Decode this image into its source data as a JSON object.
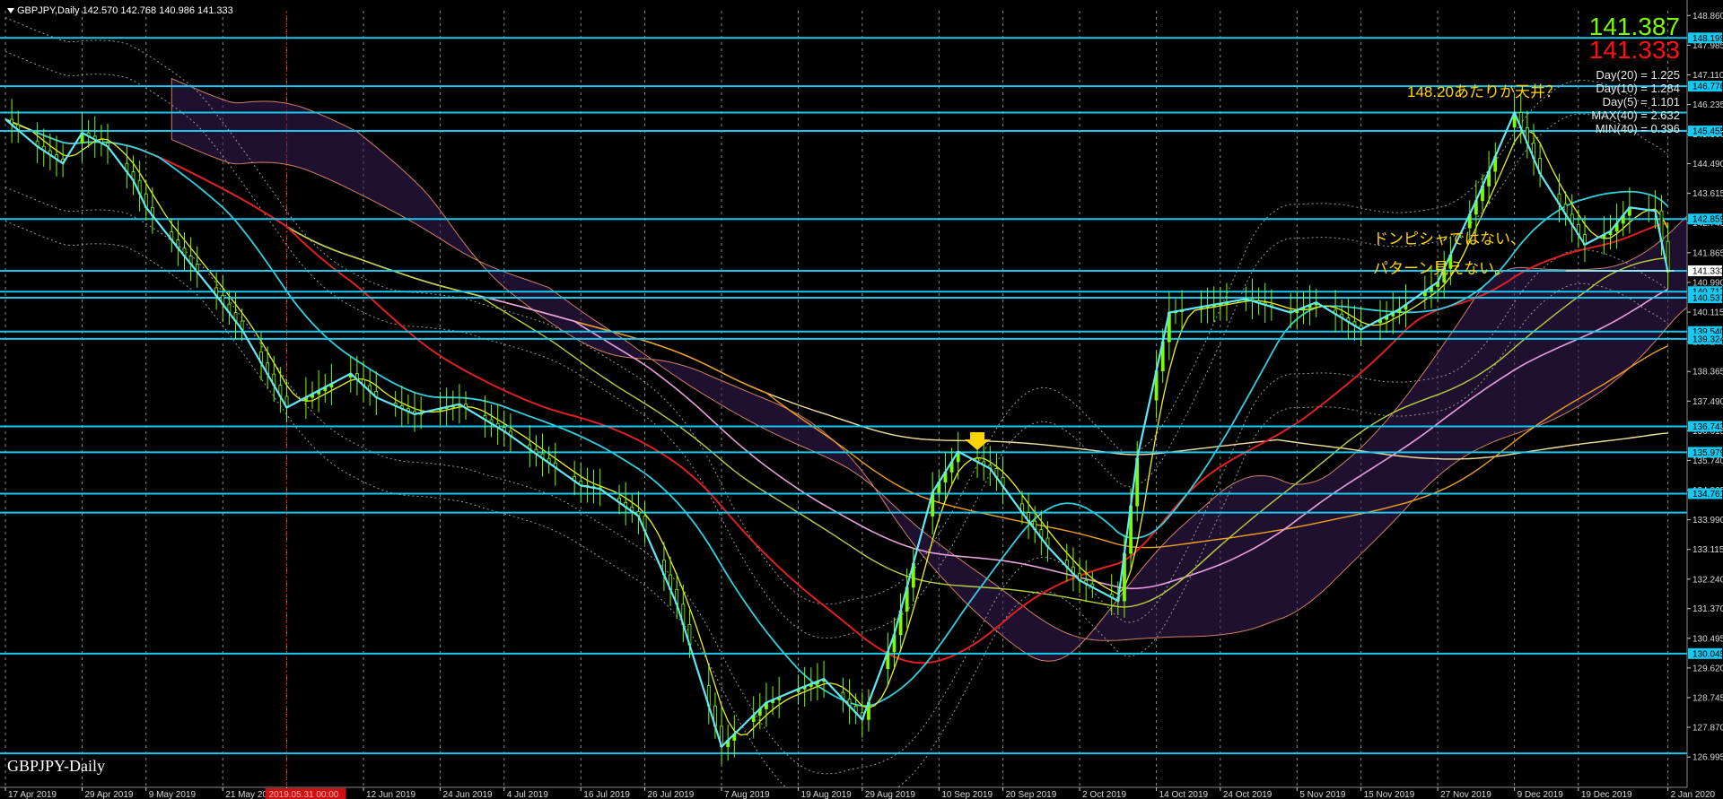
{
  "header": {
    "symbol": "GBPJPY,Daily",
    "ohlc": "142.570 142.768 140.986 141.333"
  },
  "quotes": {
    "bid": "141.387",
    "ask": "141.333"
  },
  "stats": [
    "Day(20) = 1.225",
    "Day(10) = 1.284",
    "Day(5) = 1.101",
    "MAX(40) = 2.632",
    "MIN(40) = 0.396"
  ],
  "annotations": {
    "top_note": "148.20あたりか天井？",
    "note_line1": "ドンピシャではない、",
    "note_line2": "パターン見えない。"
  },
  "symbol_label": "GBPJPY-Daily",
  "colors": {
    "background": "#000000",
    "level_line": "#19c8f0",
    "bull_candle": "#7cfc00",
    "bid": "#7cfc00",
    "ask": "#ff1010",
    "annotation": "#ffd400",
    "arrow": "#ffd400",
    "vline_marker": "#d01010"
  },
  "chart_data": {
    "type": "line",
    "title": "GBPJPY,Daily",
    "ylim": [
      126.1,
      149.0
    ],
    "xlim": [
      "2019-04-17",
      "2020-01-05"
    ],
    "price_ticks": [
      "148.860",
      "147.985",
      "147.110",
      "146.235",
      "145.360",
      "144.490",
      "143.615",
      "142.740",
      "141.865",
      "140.990",
      "140.115",
      "139.240",
      "138.365",
      "137.490",
      "136.615",
      "135.740",
      "134.865",
      "133.990",
      "133.115",
      "132.240",
      "131.370",
      "130.495",
      "129.620",
      "128.745",
      "127.870",
      "126.995"
    ],
    "date_ticks": [
      "17 Apr 2019",
      "29 Apr 2019",
      "9 May 2019",
      "21 May 2019",
      "31 May 2019",
      "12 Jun 2019",
      "24 Jun 2019",
      "4 Jul 2019",
      "16 Jul 2019",
      "26 Jul 2019",
      "7 Aug 2019",
      "19 Aug 2019",
      "29 Aug 2019",
      "10 Sep 2019",
      "20 Sep 2019",
      "2 Oct 2019",
      "14 Oct 2019",
      "24 Oct 2019",
      "5 Nov 2019",
      "15 Nov 2019",
      "27 Nov 2019",
      "9 Dec 2019",
      "19 Dec 2019",
      "2 Jan 2020"
    ],
    "level_lines": [
      {
        "price": 148.199,
        "label": "148.199"
      },
      {
        "price": 146.776,
        "label": "146.776"
      },
      {
        "price": 146.0,
        "label": ""
      },
      {
        "price": 145.455,
        "label": "145.455"
      },
      {
        "price": 142.859,
        "label": "142.859"
      },
      {
        "price": 141.333,
        "label": "141.333"
      },
      {
        "price": 140.717,
        "label": "140.717"
      },
      {
        "price": 140.537,
        "label": "140.537"
      },
      {
        "price": 139.54,
        "label": "139.540"
      },
      {
        "price": 139.324,
        "label": "139.324"
      },
      {
        "price": 136.743,
        "label": "136.743"
      },
      {
        "price": 135.979,
        "label": "135.979"
      },
      {
        "price": 134.761,
        "label": "134.761"
      },
      {
        "price": 134.2,
        "label": ""
      },
      {
        "price": 130.045,
        "label": "130.045"
      },
      {
        "price": 127.1,
        "label": ""
      }
    ],
    "vline_marker_label": "2019.05.31 00:00",
    "series": [
      {
        "name": "GBPJPY",
        "x": [
          "2019-04-17",
          "2019-04-22",
          "2019-04-26",
          "2019-04-29",
          "2019-05-01",
          "2019-05-03",
          "2019-05-07",
          "2019-05-09",
          "2019-05-14",
          "2019-05-20",
          "2019-05-24",
          "2019-05-31",
          "2019-06-05",
          "2019-06-10",
          "2019-06-14",
          "2019-06-20",
          "2019-06-27",
          "2019-07-04",
          "2019-07-10",
          "2019-07-16",
          "2019-07-19",
          "2019-07-25",
          "2019-07-31",
          "2019-08-07",
          "2019-08-14",
          "2019-08-19",
          "2019-08-23",
          "2019-08-29",
          "2019-09-03",
          "2019-09-09",
          "2019-09-13",
          "2019-09-18",
          "2019-09-23",
          "2019-09-27",
          "2019-10-02",
          "2019-10-08",
          "2019-10-11",
          "2019-10-16",
          "2019-10-22",
          "2019-10-28",
          "2019-11-04",
          "2019-11-08",
          "2019-11-15",
          "2019-11-21",
          "2019-11-27",
          "2019-12-03",
          "2019-12-09",
          "2019-12-13",
          "2019-12-17",
          "2019-12-20",
          "2019-12-24",
          "2019-12-27",
          "2019-12-31",
          "2020-01-02"
        ],
        "values": [
          145.8,
          145.0,
          144.5,
          145.4,
          145.2,
          145.0,
          144.0,
          143.2,
          142.0,
          140.6,
          139.6,
          137.3,
          137.8,
          138.3,
          137.6,
          137.1,
          137.4,
          136.6,
          135.8,
          135.0,
          134.9,
          134.1,
          131.5,
          127.3,
          128.6,
          129.0,
          129.3,
          128.1,
          130.6,
          134.8,
          136.0,
          135.5,
          134.2,
          133.2,
          132.2,
          131.6,
          135.8,
          140.1,
          140.3,
          140.5,
          140.1,
          140.4,
          139.6,
          140.2,
          141.0,
          143.4,
          146.0,
          144.2,
          143.0,
          142.1,
          142.5,
          143.2,
          143.1,
          141.3
        ]
      }
    ]
  }
}
